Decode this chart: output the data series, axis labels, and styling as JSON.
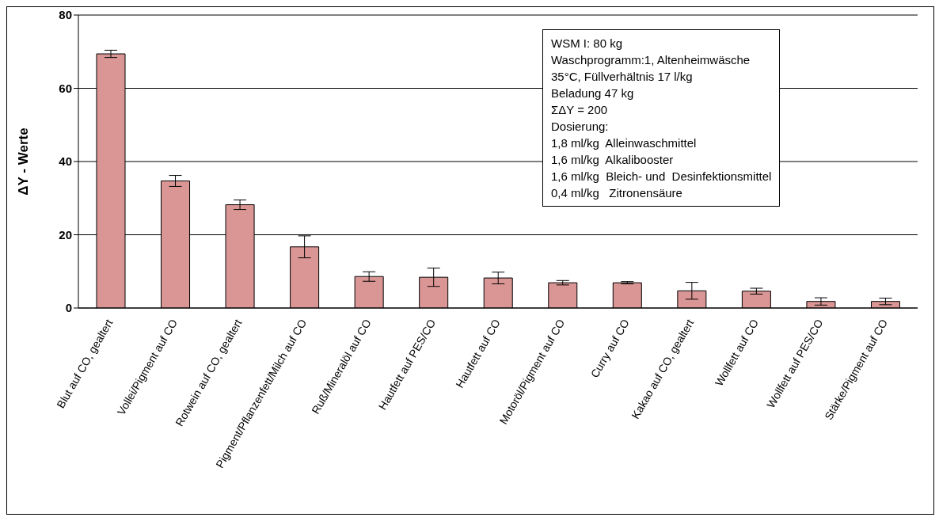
{
  "chart_data": {
    "type": "bar",
    "ylabel": "ΔY - Werte",
    "categories": [
      "Blut auf CO, gealtert",
      "Vollei/Pigment auf CO",
      "Rotwein auf CO, gealtert",
      "Pigment/Pflanzenfett/Milch auf CO",
      "Ruß/Mineralöl auf CO",
      "Hautfett auf PES/CO",
      "Hautfett auf CO",
      "Motoröl/Pigment auf CO",
      "Curry auf CO",
      "Kakao auf CO, gealtert",
      "Wollfett auf CO",
      "Wollfett auf PES/CO",
      "Stärke/Pigment auf CO"
    ],
    "values": [
      69.4,
      34.7,
      28.2,
      16.7,
      8.6,
      8.4,
      8.2,
      6.9,
      6.9,
      4.7,
      4.6,
      1.8,
      1.8
    ],
    "errors": [
      1.0,
      1.5,
      1.3,
      3.0,
      1.3,
      2.5,
      1.6,
      0.6,
      0.3,
      2.3,
      0.8,
      1.0,
      0.9
    ],
    "color": "#d99694",
    "ylim": [
      0,
      80
    ],
    "yticks": [
      0,
      20,
      40,
      60,
      80
    ],
    "grid": "y",
    "annotations": [
      "WSM I: 80 kg",
      "Waschprogramm:1, Altenheimwäsche",
      "35°C, Füllverhältnis 17 l/kg",
      "Beladung 47 kg",
      "ΣΔY = 200",
      "Dosierung:",
      "1,8 ml/kg  Alleinwaschmittel",
      "1,6 ml/kg  Alkalibooster",
      "1,6 ml/kg  Bleich- und  Desinfektionsmittel",
      "0,4 ml/kg   Zitronensäure"
    ]
  }
}
